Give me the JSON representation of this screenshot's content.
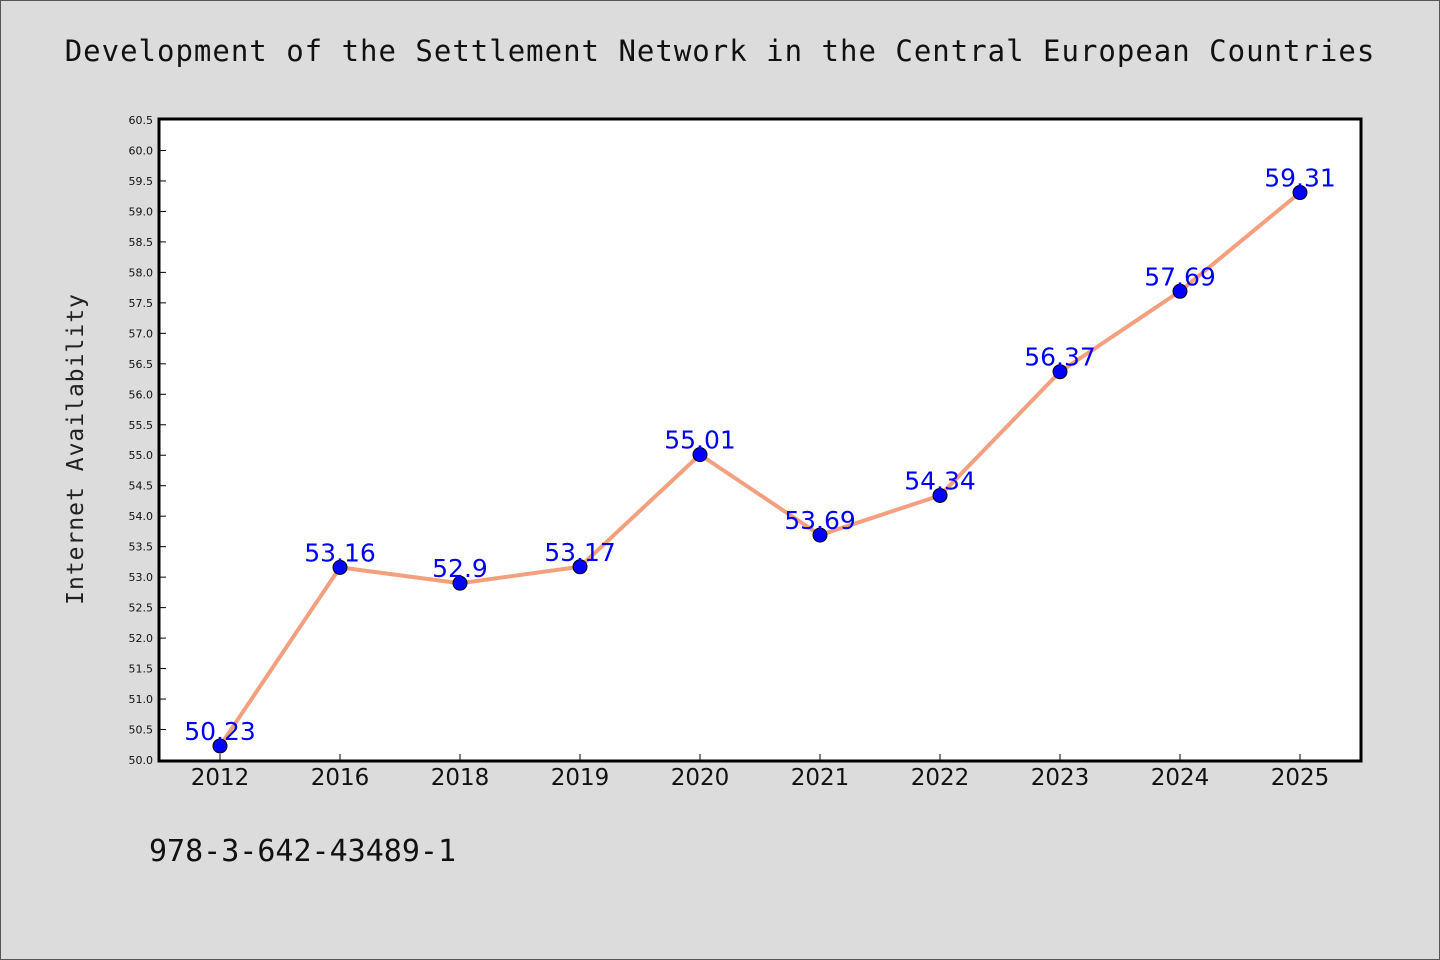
{
  "chart_data": {
    "type": "line",
    "title": "Development of the Settlement Network in the Central European Countries",
    "xlabel": "",
    "ylabel": "Internet Availability",
    "categories": [
      "2012",
      "2016",
      "2018",
      "2019",
      "2020",
      "2021",
      "2022",
      "2023",
      "2024",
      "2025"
    ],
    "series": [
      {
        "values": [
          50.23,
          53.16,
          52.9,
          53.17,
          55.01,
          53.69,
          54.34,
          56.37,
          57.69,
          59.31
        ],
        "line_color": "#f4a07e",
        "marker_color": "#0000ff"
      }
    ],
    "data_labels": [
      "50.23",
      "53.16",
      "52.9",
      "53.17",
      "55.01",
      "53.69",
      "54.34",
      "56.37",
      "57.69",
      "59.31"
    ],
    "ylim": [
      50.0,
      60.5
    ],
    "ytick_step": 0.5,
    "grid": false,
    "legend": false
  },
  "footnote": "978-3-642-43489-1",
  "colors": {
    "background": "#dcdcdc",
    "plot_area": "#ffffff",
    "line": "#f4a07e",
    "marker": "#0000ff",
    "data_label": "#0000ff"
  }
}
